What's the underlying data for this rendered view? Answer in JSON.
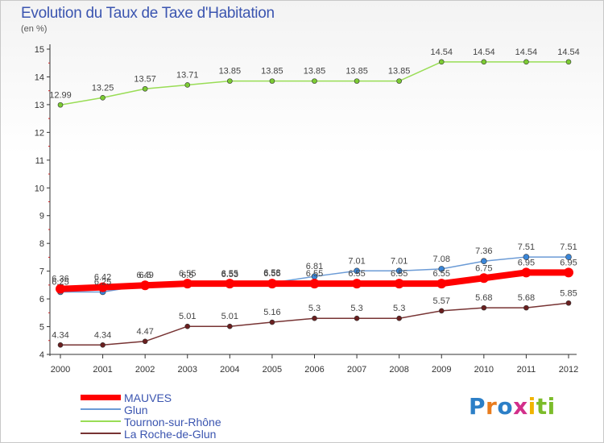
{
  "title": "Evolution du Taux de Taxe d'Habitation",
  "unit_label": "(en %)",
  "colors": {
    "title": "#3b55b0",
    "MAUVES": "#ff0000",
    "Glun": "#6b9bd6",
    "Tournon": "#99dd55",
    "LaRoche": "#773333"
  },
  "logo": {
    "letters": [
      "P",
      "r",
      "o",
      "x",
      "i",
      "t",
      "i"
    ],
    "colors": [
      "#2c7fc7",
      "#e87c1e",
      "#2c7fc7",
      "#d22e8a",
      "#f0b400",
      "#7cbc2a",
      "#7cbc2a"
    ]
  },
  "chart_data": {
    "type": "line",
    "title": "Evolution du Taux de Taxe d'Habitation",
    "ylabel": "(en %)",
    "xlabel": "",
    "x": [
      "2000",
      "2001",
      "2002",
      "2003",
      "2004",
      "2005",
      "2006",
      "2007",
      "2008",
      "2009",
      "2010",
      "2011",
      "2012"
    ],
    "ylim": [
      4,
      15
    ],
    "yticks": [
      "4",
      "5",
      "6",
      "7",
      "8",
      "9",
      "10",
      "11",
      "12",
      "13",
      "14",
      "15"
    ],
    "grid": false,
    "legend_position": "bottom-left",
    "series": [
      {
        "name": "MAUVES",
        "color": "#ff0000",
        "values": [
          6.36,
          6.42,
          6.49,
          6.55,
          6.55,
          6.55,
          6.55,
          6.55,
          6.55,
          6.55,
          6.75,
          6.95,
          6.95
        ],
        "labels": [
          "6.36",
          "6.42",
          "6.49",
          "6.55",
          "6.55",
          "6.55",
          "6.55",
          "6.55",
          "6.55",
          "6.55",
          "6.75",
          "6.95",
          "6.95"
        ]
      },
      {
        "name": "Glun",
        "color": "#6b9bd6",
        "values": [
          6.25,
          6.25,
          6.5,
          6.5,
          6.53,
          6.58,
          6.81,
          7.01,
          7.01,
          7.08,
          7.36,
          7.51,
          7.51
        ],
        "labels": [
          "6.25",
          "6.25",
          "6.5",
          "6.5",
          "6.53",
          "6.58",
          "6.81",
          "7.01",
          "7.01",
          "7.08",
          "7.36",
          "7.51",
          "7.51"
        ]
      },
      {
        "name": "Tournon-sur-Rhône",
        "color": "#99dd55",
        "values": [
          12.99,
          13.25,
          13.57,
          13.71,
          13.85,
          13.85,
          13.85,
          13.85,
          13.85,
          14.54,
          14.54,
          14.54,
          14.54
        ],
        "labels": [
          "12.99",
          "13.25",
          "13.57",
          "13.71",
          "13.85",
          "13.85",
          "13.85",
          "13.85",
          "13.85",
          "14.54",
          "14.54",
          "14.54",
          "14.54"
        ]
      },
      {
        "name": "La Roche-de-Glun",
        "color": "#773333",
        "values": [
          4.34,
          4.34,
          4.47,
          5.01,
          5.01,
          5.16,
          5.3,
          5.3,
          5.3,
          5.57,
          5.68,
          5.68,
          5.85
        ],
        "labels": [
          "4.34",
          "4.34",
          "4.47",
          "5.01",
          "5.01",
          "5.16",
          "5.3",
          "5.3",
          "5.3",
          "5.57",
          "5.68",
          "5.68",
          "5.85"
        ]
      }
    ]
  }
}
